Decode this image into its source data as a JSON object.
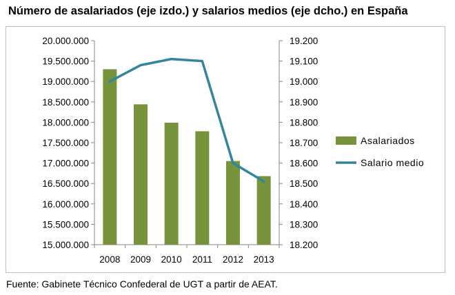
{
  "title": "Número de asalariados (eje izdo.) y salarios medios (eje dcho.) en España",
  "source": "Fuente: Gabinete Técnico Confederal de UGT a partir de AEAT.",
  "colors": {
    "bars": "#77933c",
    "line": "#31859c",
    "axis": "#868686",
    "frame": "#bfbfbf"
  },
  "chart_data": {
    "type": "bar+line",
    "title": "Número de asalariados (eje izdo.) y salarios medios (eje dcho.) en España",
    "categories": [
      "2008",
      "2009",
      "2010",
      "2011",
      "2012",
      "2013"
    ],
    "series": [
      {
        "name": "Asalariados",
        "type": "bar",
        "axis": "left",
        "values": [
          19300000,
          18440000,
          17990000,
          17780000,
          17050000,
          16680000
        ]
      },
      {
        "name": "Salario medio",
        "type": "line",
        "axis": "right",
        "values": [
          19000,
          19080,
          19110,
          19100,
          18600,
          18510
        ]
      }
    ],
    "y_left": {
      "min": 15000000,
      "max": 20000000,
      "step": 500000,
      "tick_labels": [
        "15.000.000",
        "15.500.000",
        "16.000.000",
        "16.500.000",
        "17.000.000",
        "17.500.000",
        "18.000.000",
        "18.500.000",
        "19.000.000",
        "19.500.000",
        "20.000.000"
      ]
    },
    "y_right": {
      "min": 18200,
      "max": 19200,
      "step": 100,
      "tick_labels": [
        "18.200",
        "18.300",
        "18.400",
        "18.500",
        "18.600",
        "18.700",
        "18.800",
        "18.900",
        "19.000",
        "19.100",
        "19.200"
      ]
    },
    "grid": false,
    "legend_position": "right"
  }
}
